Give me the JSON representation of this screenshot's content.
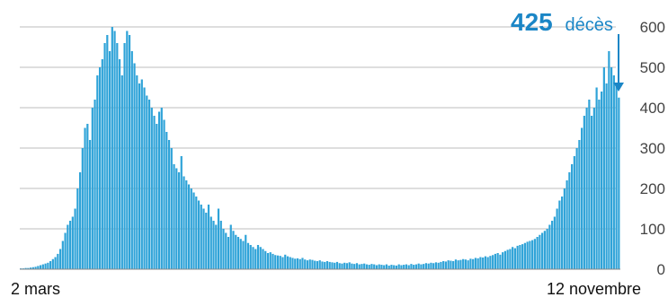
{
  "chart_data": {
    "type": "bar",
    "x_start_label": "2 mars",
    "x_end_label": "12 novembre",
    "y_ticks": [
      "0",
      "100",
      "200",
      "300",
      "400",
      "500",
      "600"
    ],
    "ylim": [
      0,
      600
    ],
    "grid": true,
    "bar_color": "#2fa3d8",
    "grid_color": "#bdbdbd",
    "annotation": {
      "value": "425",
      "label": "décès",
      "color": "#1b86c6",
      "points_to": "last bar"
    },
    "series": [
      {
        "values": [
          2,
          2,
          3,
          3,
          4,
          5,
          6,
          8,
          10,
          12,
          14,
          16,
          20,
          25,
          30,
          38,
          50,
          70,
          90,
          110,
          120,
          130,
          150,
          200,
          240,
          300,
          350,
          360,
          320,
          400,
          420,
          480,
          500,
          520,
          560,
          580,
          540,
          600,
          590,
          560,
          520,
          480,
          560,
          590,
          580,
          540,
          510,
          480,
          460,
          470,
          450,
          430,
          420,
          400,
          380,
          360,
          390,
          400,
          370,
          340,
          320,
          300,
          260,
          250,
          240,
          280,
          230,
          220,
          210,
          200,
          190,
          180,
          170,
          160,
          150,
          140,
          160,
          130,
          120,
          110,
          150,
          120,
          100,
          90,
          80,
          110,
          95,
          85,
          80,
          75,
          70,
          85,
          65,
          60,
          55,
          50,
          60,
          55,
          50,
          45,
          40,
          42,
          38,
          35,
          34,
          33,
          30,
          36,
          32,
          30,
          28,
          26,
          27,
          25,
          28,
          24,
          22,
          24,
          23,
          21,
          20,
          22,
          19,
          18,
          20,
          18,
          17,
          16,
          18,
          15,
          14,
          16,
          15,
          17,
          14,
          13,
          15,
          12,
          13,
          14,
          12,
          11,
          13,
          12,
          10,
          12,
          11,
          10,
          12,
          9,
          11,
          10,
          9,
          12,
          10,
          11,
          12,
          10,
          13,
          11,
          12,
          14,
          12,
          13,
          15,
          14,
          16,
          15,
          17,
          16,
          18,
          20,
          19,
          22,
          21,
          20,
          24,
          22,
          23,
          25,
          24,
          22,
          26,
          25,
          28,
          27,
          30,
          29,
          32,
          30,
          33,
          35,
          38,
          40,
          36,
          42,
          45,
          48,
          50,
          55,
          52,
          58,
          60,
          62,
          65,
          68,
          70,
          72,
          75,
          80,
          85,
          90,
          95,
          100,
          110,
          120,
          130,
          150,
          170,
          180,
          200,
          220,
          240,
          260,
          280,
          300,
          320,
          350,
          380,
          400,
          420,
          380,
          400,
          450,
          420,
          440,
          500,
          460,
          540,
          500,
          480,
          460,
          425
        ]
      }
    ]
  }
}
